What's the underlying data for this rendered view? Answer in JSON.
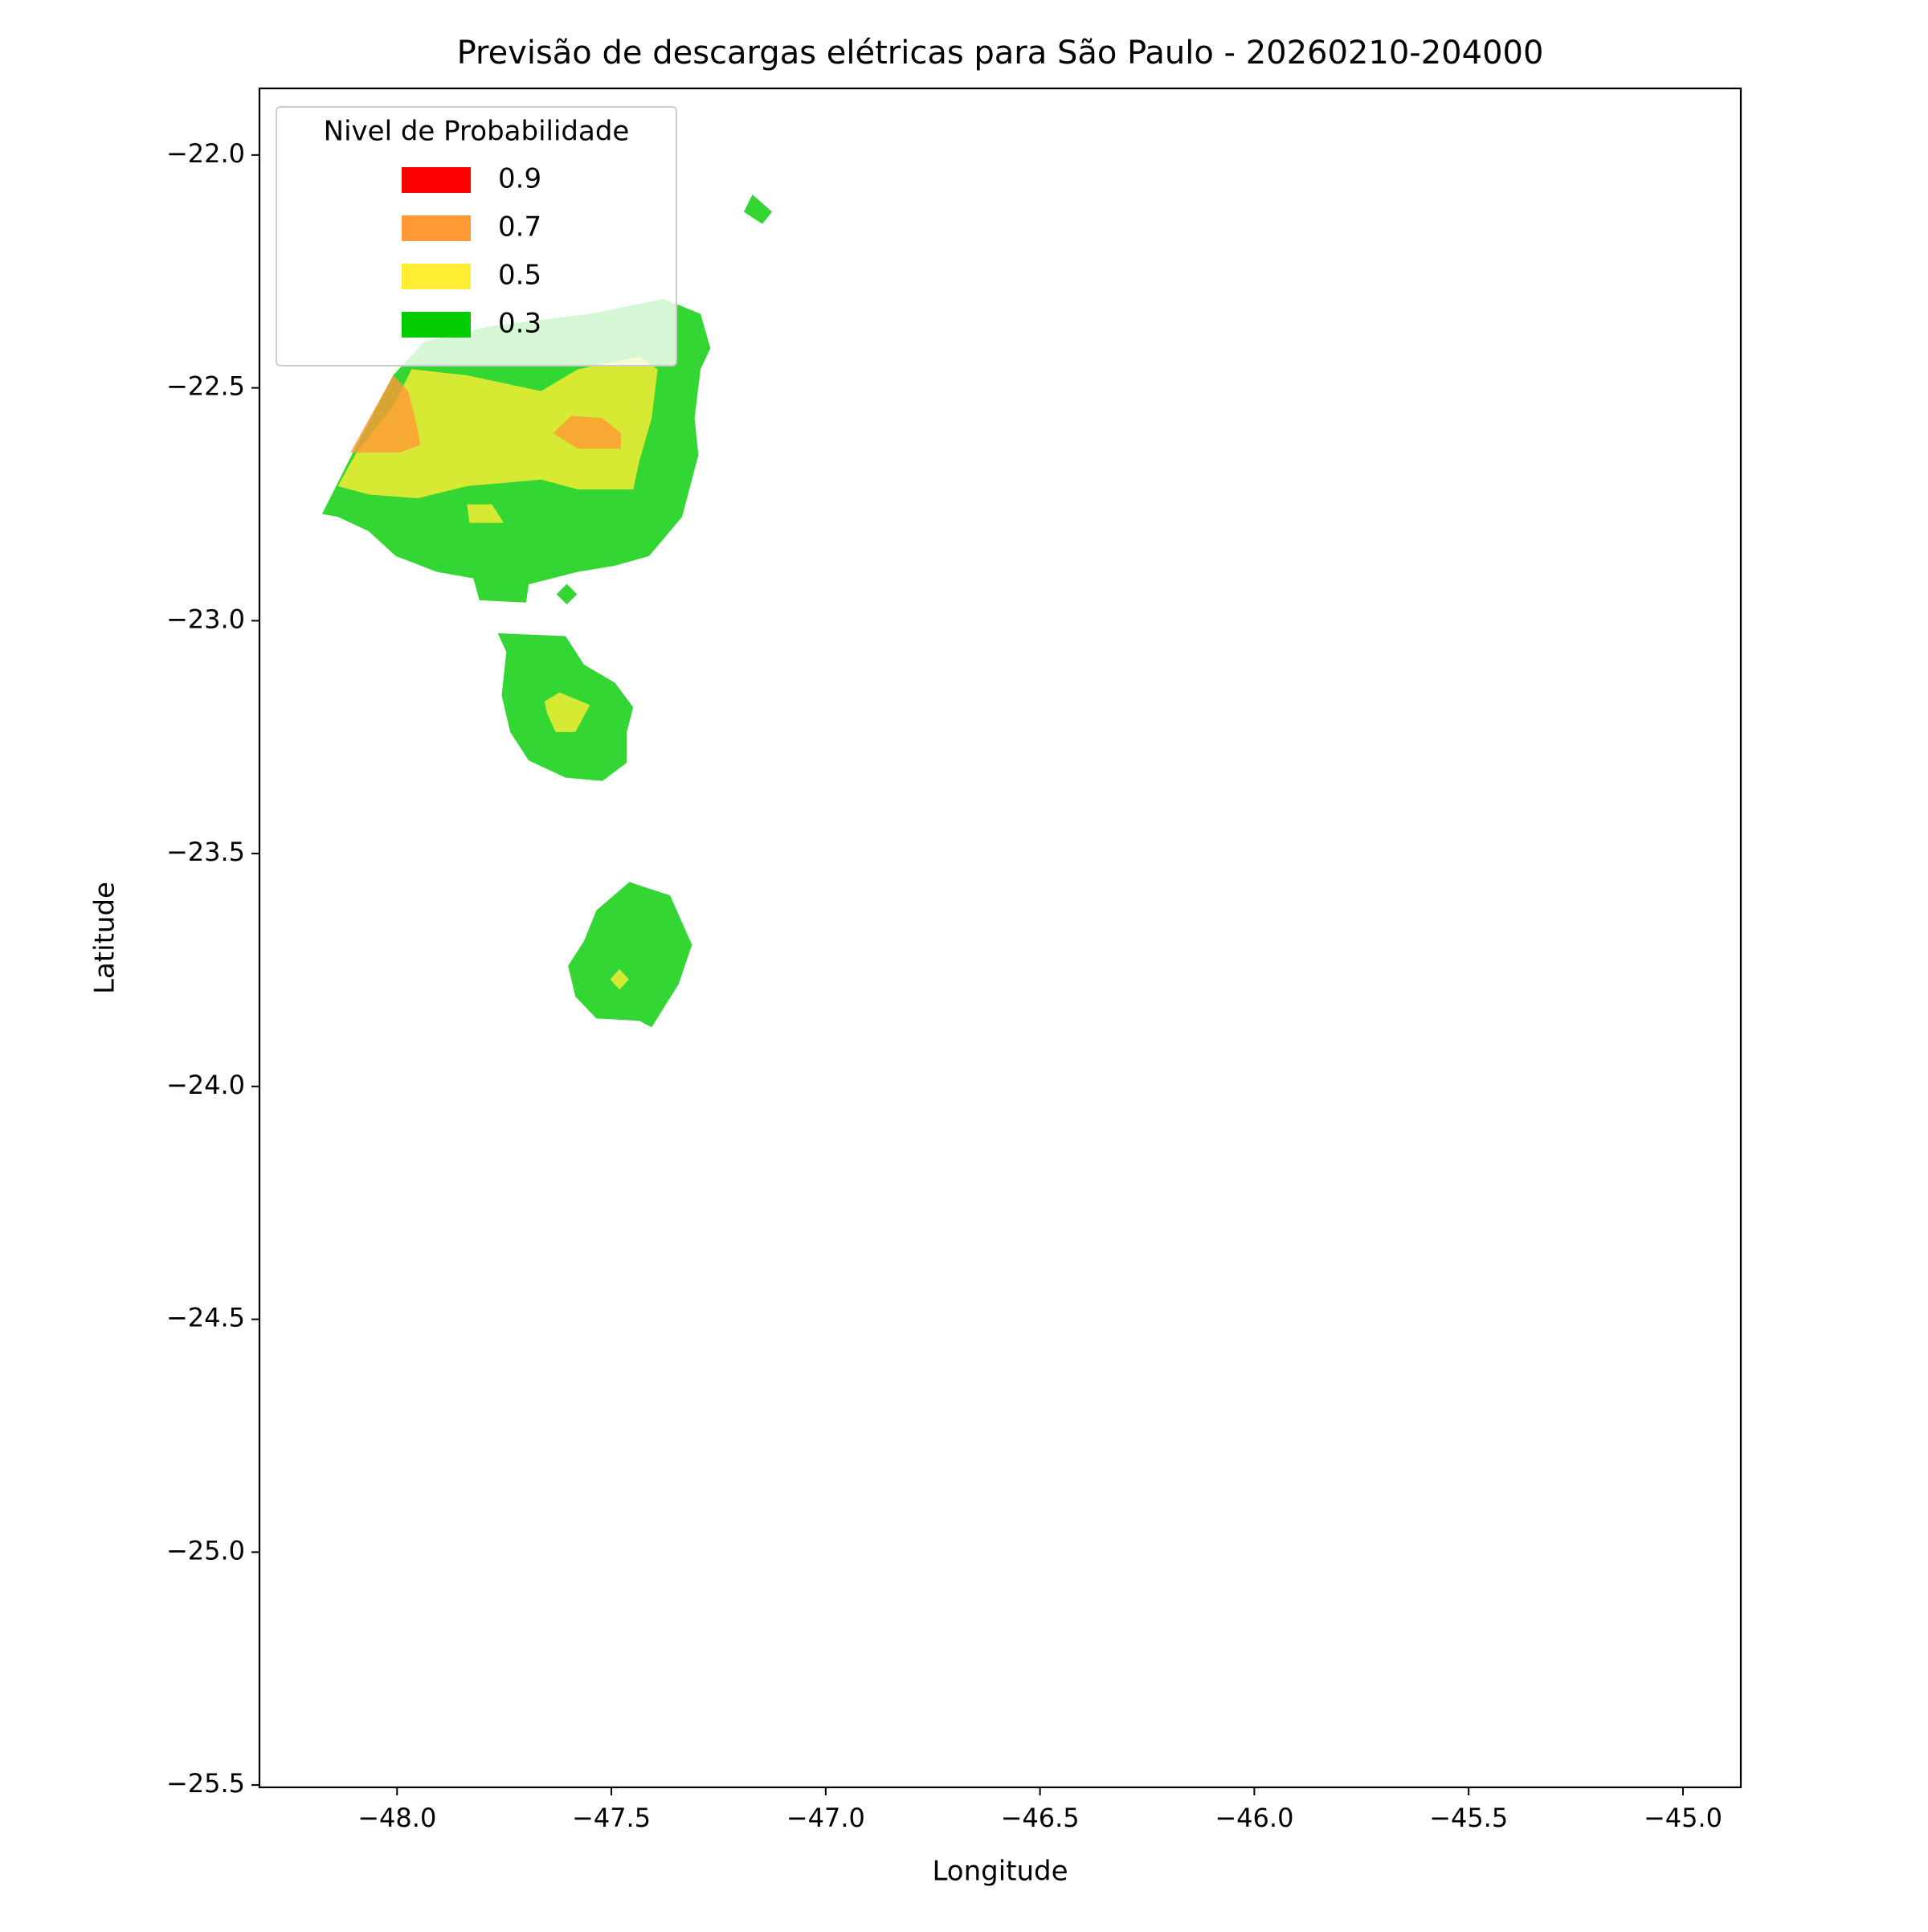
{
  "chart_data": {
    "type": "contour",
    "title": "Previsão de descargas elétricas para São Paulo - 20260210-204000",
    "x_label": "Longitude",
    "y_label": "Latitude",
    "xlim": [
      -48.321,
      -44.865
    ],
    "ylim": [
      -25.505,
      -21.857
    ],
    "xticks": [
      {
        "value": -48.0,
        "label": "−48.0"
      },
      {
        "value": -47.5,
        "label": "−47.5"
      },
      {
        "value": -47.0,
        "label": "−47.0"
      },
      {
        "value": -46.5,
        "label": "−46.5"
      },
      {
        "value": -46.0,
        "label": "−46.0"
      },
      {
        "value": -45.5,
        "label": "−45.5"
      },
      {
        "value": -45.0,
        "label": "−45.0"
      }
    ],
    "yticks": [
      {
        "value": -22.0,
        "label": "−22.0"
      },
      {
        "value": -22.5,
        "label": "−22.5"
      },
      {
        "value": -23.0,
        "label": "−23.0"
      },
      {
        "value": -23.5,
        "label": "−23.5"
      },
      {
        "value": -24.0,
        "label": "−24.0"
      },
      {
        "value": -24.5,
        "label": "−24.5"
      },
      {
        "value": -25.0,
        "label": "−25.0"
      },
      {
        "value": -25.5,
        "label": "−25.5"
      }
    ],
    "legend_title": "Nivel de Probabilidade",
    "legend_position": "upper left",
    "alpha": 0.8,
    "series": [
      {
        "name": "0.9",
        "color": "#ff0000",
        "polygons": []
      },
      {
        "name": "0.7",
        "color": "#ff9933",
        "polygons": [
          [
            [
              -48.109,
              -22.639
            ],
            [
              -48.009,
              -22.473
            ],
            [
              -47.974,
              -22.507
            ],
            [
              -47.951,
              -22.592
            ],
            [
              -47.946,
              -22.623
            ],
            [
              -47.994,
              -22.639
            ]
          ],
          [
            [
              -47.636,
              -22.597
            ],
            [
              -47.593,
              -22.56
            ],
            [
              -47.521,
              -22.565
            ],
            [
              -47.478,
              -22.597
            ],
            [
              -47.478,
              -22.631
            ],
            [
              -47.578,
              -22.631
            ]
          ]
        ]
      },
      {
        "name": "0.5",
        "color": "#ffee33",
        "polygons": [
          [
            [
              -48.138,
              -22.711
            ],
            [
              -48.095,
              -22.639
            ],
            [
              -48.009,
              -22.539
            ],
            [
              -47.966,
              -22.46
            ],
            [
              -47.837,
              -22.473
            ],
            [
              -47.664,
              -22.507
            ],
            [
              -47.578,
              -22.46
            ],
            [
              -47.435,
              -22.433
            ],
            [
              -47.392,
              -22.46
            ],
            [
              -47.406,
              -22.565
            ],
            [
              -47.435,
              -22.658
            ],
            [
              -47.449,
              -22.718
            ],
            [
              -47.578,
              -22.718
            ],
            [
              -47.664,
              -22.697
            ],
            [
              -47.837,
              -22.711
            ],
            [
              -47.951,
              -22.737
            ],
            [
              -48.066,
              -22.729
            ]
          ],
          [
            [
              -47.837,
              -22.75
            ],
            [
              -47.779,
              -22.75
            ],
            [
              -47.751,
              -22.79
            ],
            [
              -47.831,
              -22.79
            ]
          ],
          [
            [
              -47.656,
              -23.173
            ],
            [
              -47.621,
              -23.154
            ],
            [
              -47.55,
              -23.181
            ],
            [
              -47.584,
              -23.239
            ],
            [
              -47.63,
              -23.239
            ],
            [
              -47.65,
              -23.199
            ]
          ],
          [
            [
              -47.481,
              -23.748
            ],
            [
              -47.459,
              -23.77
            ],
            [
              -47.481,
              -23.792
            ],
            [
              -47.503,
              -23.77
            ]
          ]
        ]
      },
      {
        "name": "0.3",
        "color": "#00cc00",
        "polygons": [
          [
            [
              -48.175,
              -22.771
            ],
            [
              -48.109,
              -22.65
            ],
            [
              -48.009,
              -22.473
            ],
            [
              -47.937,
              -22.401
            ],
            [
              -47.779,
              -22.367
            ],
            [
              -47.55,
              -22.341
            ],
            [
              -47.378,
              -22.309
            ],
            [
              -47.292,
              -22.341
            ],
            [
              -47.269,
              -22.415
            ],
            [
              -47.292,
              -22.46
            ],
            [
              -47.306,
              -22.565
            ],
            [
              -47.297,
              -22.644
            ],
            [
              -47.335,
              -22.777
            ],
            [
              -47.378,
              -22.824
            ],
            [
              -47.412,
              -22.861
            ],
            [
              -47.492,
              -22.882
            ],
            [
              -47.578,
              -22.895
            ],
            [
              -47.693,
              -22.922
            ],
            [
              -47.699,
              -22.961
            ],
            [
              -47.808,
              -22.956
            ],
            [
              -47.822,
              -22.909
            ],
            [
              -47.908,
              -22.895
            ],
            [
              -48.003,
              -22.861
            ],
            [
              -48.066,
              -22.808
            ],
            [
              -48.138,
              -22.777
            ]
          ],
          [
            [
              -47.765,
              -23.027
            ],
            [
              -47.607,
              -23.033
            ],
            [
              -47.564,
              -23.094
            ],
            [
              -47.492,
              -23.133
            ],
            [
              -47.449,
              -23.186
            ],
            [
              -47.464,
              -23.239
            ],
            [
              -47.464,
              -23.305
            ],
            [
              -47.521,
              -23.344
            ],
            [
              -47.607,
              -23.337
            ],
            [
              -47.693,
              -23.3
            ],
            [
              -47.736,
              -23.239
            ],
            [
              -47.756,
              -23.16
            ],
            [
              -47.745,
              -23.067
            ]
          ],
          [
            [
              -47.535,
              -23.622
            ],
            [
              -47.458,
              -23.561
            ],
            [
              -47.363,
              -23.59
            ],
            [
              -47.312,
              -23.696
            ],
            [
              -47.343,
              -23.78
            ],
            [
              -47.406,
              -23.873
            ],
            [
              -47.435,
              -23.859
            ],
            [
              -47.535,
              -23.854
            ],
            [
              -47.584,
              -23.807
            ],
            [
              -47.601,
              -23.741
            ],
            [
              -47.564,
              -23.688
            ]
          ],
          [
            [
              -47.191,
              -22.122
            ],
            [
              -47.171,
              -22.085
            ],
            [
              -47.125,
              -22.122
            ],
            [
              -47.148,
              -22.148
            ]
          ],
          [
            [
              -47.604,
              -22.921
            ],
            [
              -47.58,
              -22.943
            ],
            [
              -47.604,
              -22.965
            ],
            [
              -47.628,
              -22.943
            ]
          ]
        ]
      }
    ]
  }
}
